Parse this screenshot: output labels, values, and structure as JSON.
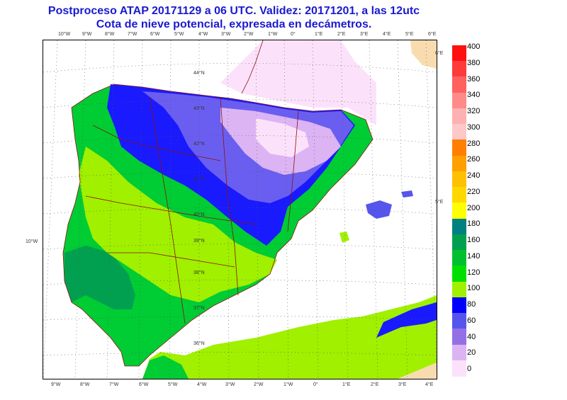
{
  "header": {
    "title": "Postproceso ATAP 20171129 a 06 UTC. Validez: 20171201, a las 12utc",
    "subtitle": "Cota de nieve potencial, expresada en decámetros."
  },
  "map": {
    "lon_labels": [
      "10°W",
      "9°W",
      "8°W",
      "7°W",
      "6°W",
      "5°W",
      "4°W",
      "3°W",
      "2°W",
      "1°W",
      "0°",
      "1°E",
      "2°E",
      "3°E",
      "4°E",
      "5°E",
      "6°E"
    ],
    "lon_labels_bottom": [
      "9°W",
      "8°W",
      "7°W",
      "6°W",
      "5°W",
      "4°W",
      "3°W",
      "2°W",
      "1°W",
      "0°",
      "1°E",
      "2°E",
      "3°E",
      "4°E"
    ],
    "lat_labels": [
      "44°N",
      "43°N",
      "42°N",
      "41°N",
      "40°N",
      "39°N",
      "38°N",
      "37°N",
      "36°N"
    ],
    "edge_labels": [
      "6°E",
      "5°E",
      "10°W"
    ]
  },
  "legend": {
    "labels": [
      "400",
      "380",
      "360",
      "340",
      "320",
      "300",
      "280",
      "260",
      "240",
      "220",
      "200",
      "180",
      "160",
      "140",
      "120",
      "100",
      "80",
      "60",
      "40",
      "20",
      "0"
    ],
    "colors": [
      "#ff1010",
      "#ff3a3a",
      "#ff6060",
      "#ff8a8a",
      "#ffb0b0",
      "#ffc8c8",
      "#ff7f00",
      "#ff9f00",
      "#ffc000",
      "#ffd800",
      "#ffff00",
      "#008080",
      "#00a050",
      "#00c030",
      "#00e000",
      "#a0f000",
      "#0000ff",
      "#5555ee",
      "#9370e6",
      "#dcb4f4",
      "#fbe2fa"
    ]
  }
}
